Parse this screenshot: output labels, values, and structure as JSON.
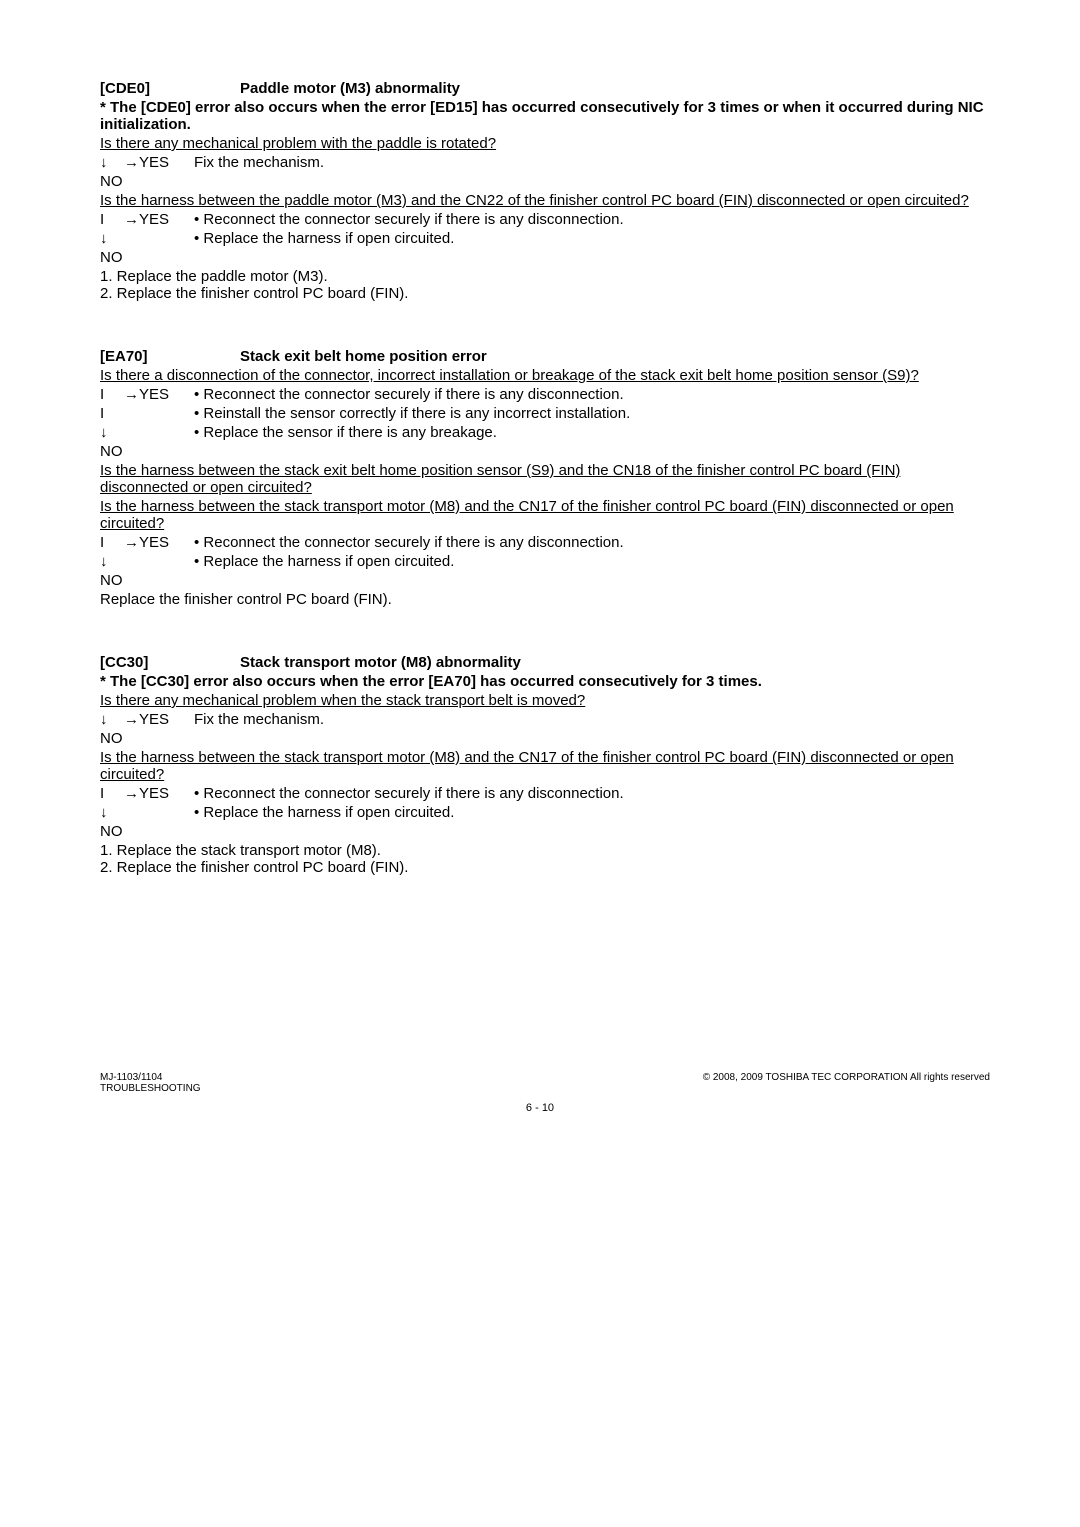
{
  "blocks": [
    {
      "code": "[CDE0]",
      "title": "Paddle motor (M3) abnormality",
      "notes": [
        "* The [CDE0] error also occurs when the error [ED15] has occurred consecutively for 3 times or when it occurred during NIC initialization."
      ],
      "items": [
        {
          "type": "question",
          "text": "Is there any mechanical problem with the paddle is rotated?"
        },
        {
          "type": "row",
          "arrow": "↓",
          "yes": "→YES",
          "text": "Fix the mechanism."
        },
        {
          "type": "no",
          "text": "NO"
        },
        {
          "type": "question",
          "text": "Is the harness between the paddle motor (M3) and the CN22 of the finisher control PC board (FIN) disconnected or open circuited?"
        },
        {
          "type": "row",
          "arrow": "I",
          "yes": "→YES",
          "bullet": "•",
          "text": "Reconnect the connector securely if there is any disconnection."
        },
        {
          "type": "row",
          "arrow": "↓",
          "yes": "",
          "bullet": "•",
          "text": "Replace the harness if open circuited."
        },
        {
          "type": "no",
          "text": "NO"
        },
        {
          "type": "step",
          "num": "1.",
          "text": "Replace the paddle motor (M3)."
        },
        {
          "type": "step",
          "num": "2.",
          "text": "Replace the finisher control PC board (FIN)."
        }
      ]
    },
    {
      "code": "[EA70]",
      "title": "Stack exit belt home position error",
      "notes": [],
      "items": [
        {
          "type": "question",
          "text": "Is there a disconnection of the connector, incorrect installation or breakage of the stack exit belt home position sensor (S9)?"
        },
        {
          "type": "row",
          "arrow": "I",
          "yes": "→YES",
          "bullet": "•",
          "text": "Reconnect the connector securely if there is any disconnection."
        },
        {
          "type": "row",
          "arrow": "I",
          "yes": "",
          "bullet": "•",
          "text": "Reinstall the sensor correctly if there is any incorrect installation."
        },
        {
          "type": "row",
          "arrow": "↓",
          "yes": "",
          "bullet": "•",
          "text": "Replace the sensor if there is any breakage."
        },
        {
          "type": "no",
          "text": "NO"
        },
        {
          "type": "question",
          "text": "Is the harness between the stack exit belt home position sensor (S9) and the CN18 of the finisher control PC board (FIN) disconnected or open circuited?"
        },
        {
          "type": "question",
          "text": "Is the harness between the stack transport motor (M8) and the CN17 of the finisher control PC board (FIN) disconnected or open circuited?"
        },
        {
          "type": "row",
          "arrow": "I",
          "yes": "→YES",
          "bullet": "•",
          "text": "Reconnect the connector securely if there is any disconnection."
        },
        {
          "type": "row",
          "arrow": "↓",
          "yes": "",
          "bullet": "•",
          "text": "Replace the harness if open circuited."
        },
        {
          "type": "no",
          "text": "NO"
        },
        {
          "type": "plain",
          "text": "Replace the finisher control PC board (FIN)."
        }
      ]
    },
    {
      "code": "[CC30]",
      "title": "Stack transport motor (M8) abnormality",
      "notes": [
        "* The [CC30] error also occurs when the error [EA70] has occurred consecutively for 3 times."
      ],
      "items": [
        {
          "type": "question",
          "text": "Is there any mechanical problem when the stack transport belt is moved?"
        },
        {
          "type": "row",
          "arrow": "↓",
          "yes": "→YES",
          "text": "Fix the mechanism."
        },
        {
          "type": "no",
          "text": "NO"
        },
        {
          "type": "question",
          "text": "Is the harness between the stack transport motor (M8) and the CN17 of the finisher control PC board (FIN) disconnected or open circuited?"
        },
        {
          "type": "row",
          "arrow": "I",
          "yes": "→YES",
          "bullet": "•",
          "text": "Reconnect the connector securely if there is any disconnection."
        },
        {
          "type": "row",
          "arrow": "↓",
          "yes": "",
          "bullet": "•",
          "text": "Replace the harness if open circuited."
        },
        {
          "type": "no",
          "text": "NO"
        },
        {
          "type": "step",
          "num": "1.",
          "text": "Replace the stack transport motor (M8)."
        },
        {
          "type": "step",
          "num": "2.",
          "text": "Replace the finisher control PC board (FIN)."
        }
      ]
    }
  ],
  "footer": {
    "model": "MJ-1103/1104",
    "section": "TROUBLESHOOTING",
    "copyright": "© 2008, 2009 TOSHIBA TEC CORPORATION All rights reserved",
    "page": "6 - 10"
  }
}
